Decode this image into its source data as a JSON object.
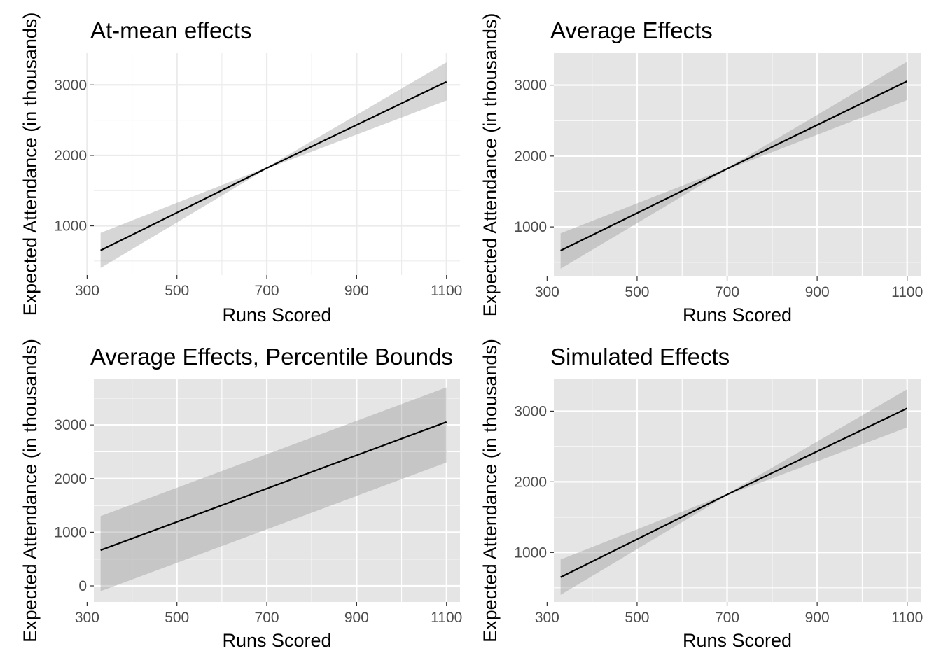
{
  "style": {
    "panel_bg_grey": "#e5e5e5",
    "panel_bg_white": "#ffffff",
    "grid_on_grey": "#ffffff",
    "grid_on_white": "#ebebeb",
    "ribbon": "#999999",
    "line": "#000000"
  },
  "chart_data": [
    {
      "type": "line",
      "title": "At-mean effects",
      "xlabel": "Runs Scored",
      "ylabel": "Expected Attendance (in thousands)",
      "theme": "minimal",
      "grid": true,
      "xlim": [
        315,
        1130
      ],
      "ylim": [
        300,
        3450
      ],
      "xticks": [
        300,
        500,
        700,
        900,
        1100
      ],
      "yticks": [
        1000,
        2000,
        3000
      ],
      "x": [
        330,
        700,
        1100
      ],
      "y": [
        650,
        1820,
        3045
      ],
      "lower": [
        400,
        1810,
        2780
      ],
      "upper": [
        900,
        1830,
        3320
      ]
    },
    {
      "type": "line",
      "title": "Average Effects",
      "xlabel": "Runs Scored",
      "ylabel": "Expected Attendance (in thousands)",
      "theme": "grey",
      "grid": true,
      "xlim": [
        315,
        1130
      ],
      "ylim": [
        300,
        3450
      ],
      "xticks": [
        300,
        500,
        700,
        900,
        1100
      ],
      "yticks": [
        1000,
        2000,
        3000
      ],
      "x": [
        330,
        700,
        1100
      ],
      "y": [
        665,
        1820,
        3055
      ],
      "lower": [
        410,
        1810,
        2790
      ],
      "upper": [
        910,
        1830,
        3330
      ]
    },
    {
      "type": "line",
      "title": "Average Effects, Percentile Bounds",
      "xlabel": "Runs Scored",
      "ylabel": "Expected Attendance (in thousands)",
      "theme": "grey",
      "grid": true,
      "xlim": [
        315,
        1130
      ],
      "ylim": [
        -300,
        3850
      ],
      "xticks": [
        300,
        500,
        700,
        900,
        1100
      ],
      "yticks": [
        0,
        1000,
        2000,
        3000
      ],
      "x": [
        330,
        1100
      ],
      "y": [
        665,
        3055
      ],
      "lower": [
        -100,
        2300
      ],
      "upper": [
        1300,
        3700
      ]
    },
    {
      "type": "line",
      "title": "Simulated Effects",
      "xlabel": "Runs Scored",
      "ylabel": "Expected Attendance (in thousands)",
      "theme": "grey",
      "grid": true,
      "xlim": [
        315,
        1130
      ],
      "ylim": [
        300,
        3450
      ],
      "xticks": [
        300,
        500,
        700,
        900,
        1100
      ],
      "yticks": [
        1000,
        2000,
        3000
      ],
      "x": [
        330,
        700,
        1100
      ],
      "y": [
        650,
        1820,
        3040
      ],
      "lower": [
        400,
        1810,
        2770
      ],
      "upper": [
        900,
        1830,
        3310
      ]
    }
  ]
}
